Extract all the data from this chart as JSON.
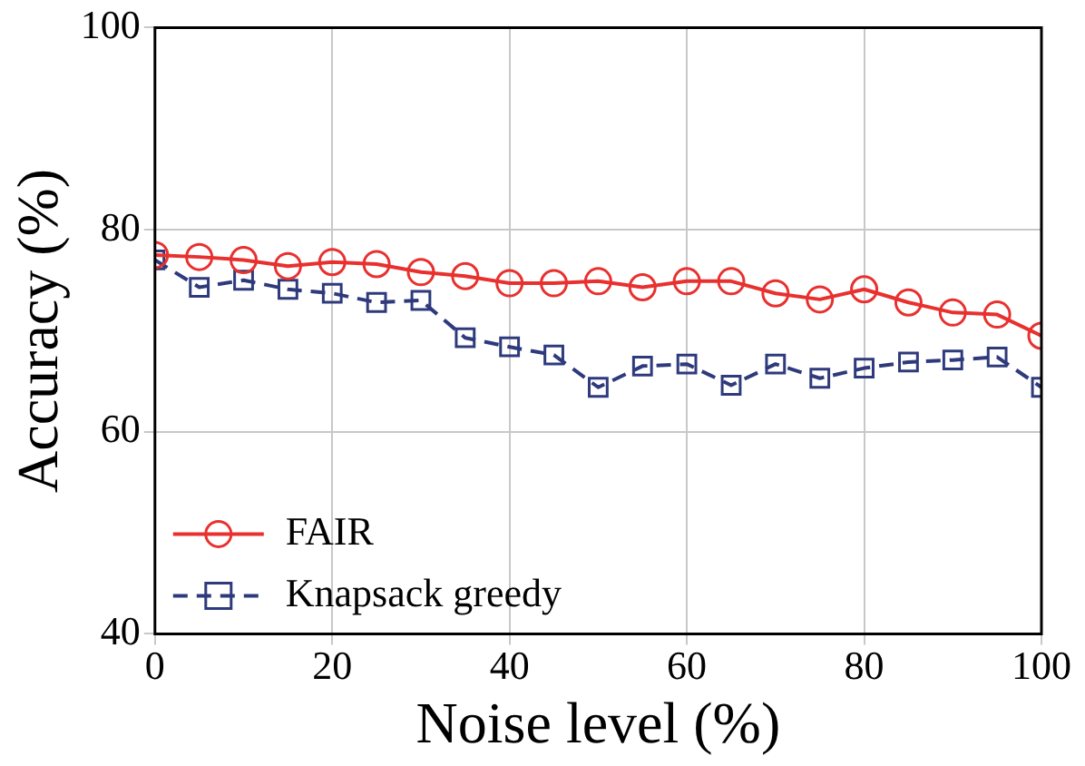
{
  "chart_data": {
    "type": "line",
    "xlabel": "Noise level (%)",
    "ylabel": "Accuracy (%)",
    "x": [
      0,
      5,
      10,
      15,
      20,
      25,
      30,
      35,
      40,
      45,
      50,
      55,
      60,
      65,
      70,
      75,
      80,
      85,
      90,
      95,
      100
    ],
    "series": [
      {
        "name": "FAIR",
        "color": "#e8312f",
        "marker": "circle",
        "line_style": "solid",
        "values": [
          77.5,
          77.3,
          77,
          76.4,
          76.8,
          76.6,
          75.8,
          75.4,
          74.7,
          74.7,
          74.9,
          74.3,
          74.9,
          74.9,
          73.7,
          73.1,
          74.1,
          72.8,
          71.8,
          71.6,
          69.5
        ]
      },
      {
        "name": "Knapsack greedy",
        "color": "#2e3a7c",
        "marker": "square",
        "line_style": "dashed",
        "values": [
          77,
          74.3,
          75,
          74.1,
          73.7,
          72.8,
          73,
          69.3,
          68.4,
          67.6,
          64.4,
          66.5,
          66.7,
          64.6,
          66.7,
          65.3,
          66.3,
          66.9,
          67.1,
          67.4,
          64.4
        ]
      }
    ],
    "xlim": [
      0,
      100
    ],
    "xticks": [
      0,
      20,
      40,
      60,
      80,
      100
    ],
    "ylim": [
      40,
      100
    ],
    "yticks": [
      40,
      60,
      80,
      100
    ],
    "grid": true,
    "legend": "bottom left"
  }
}
